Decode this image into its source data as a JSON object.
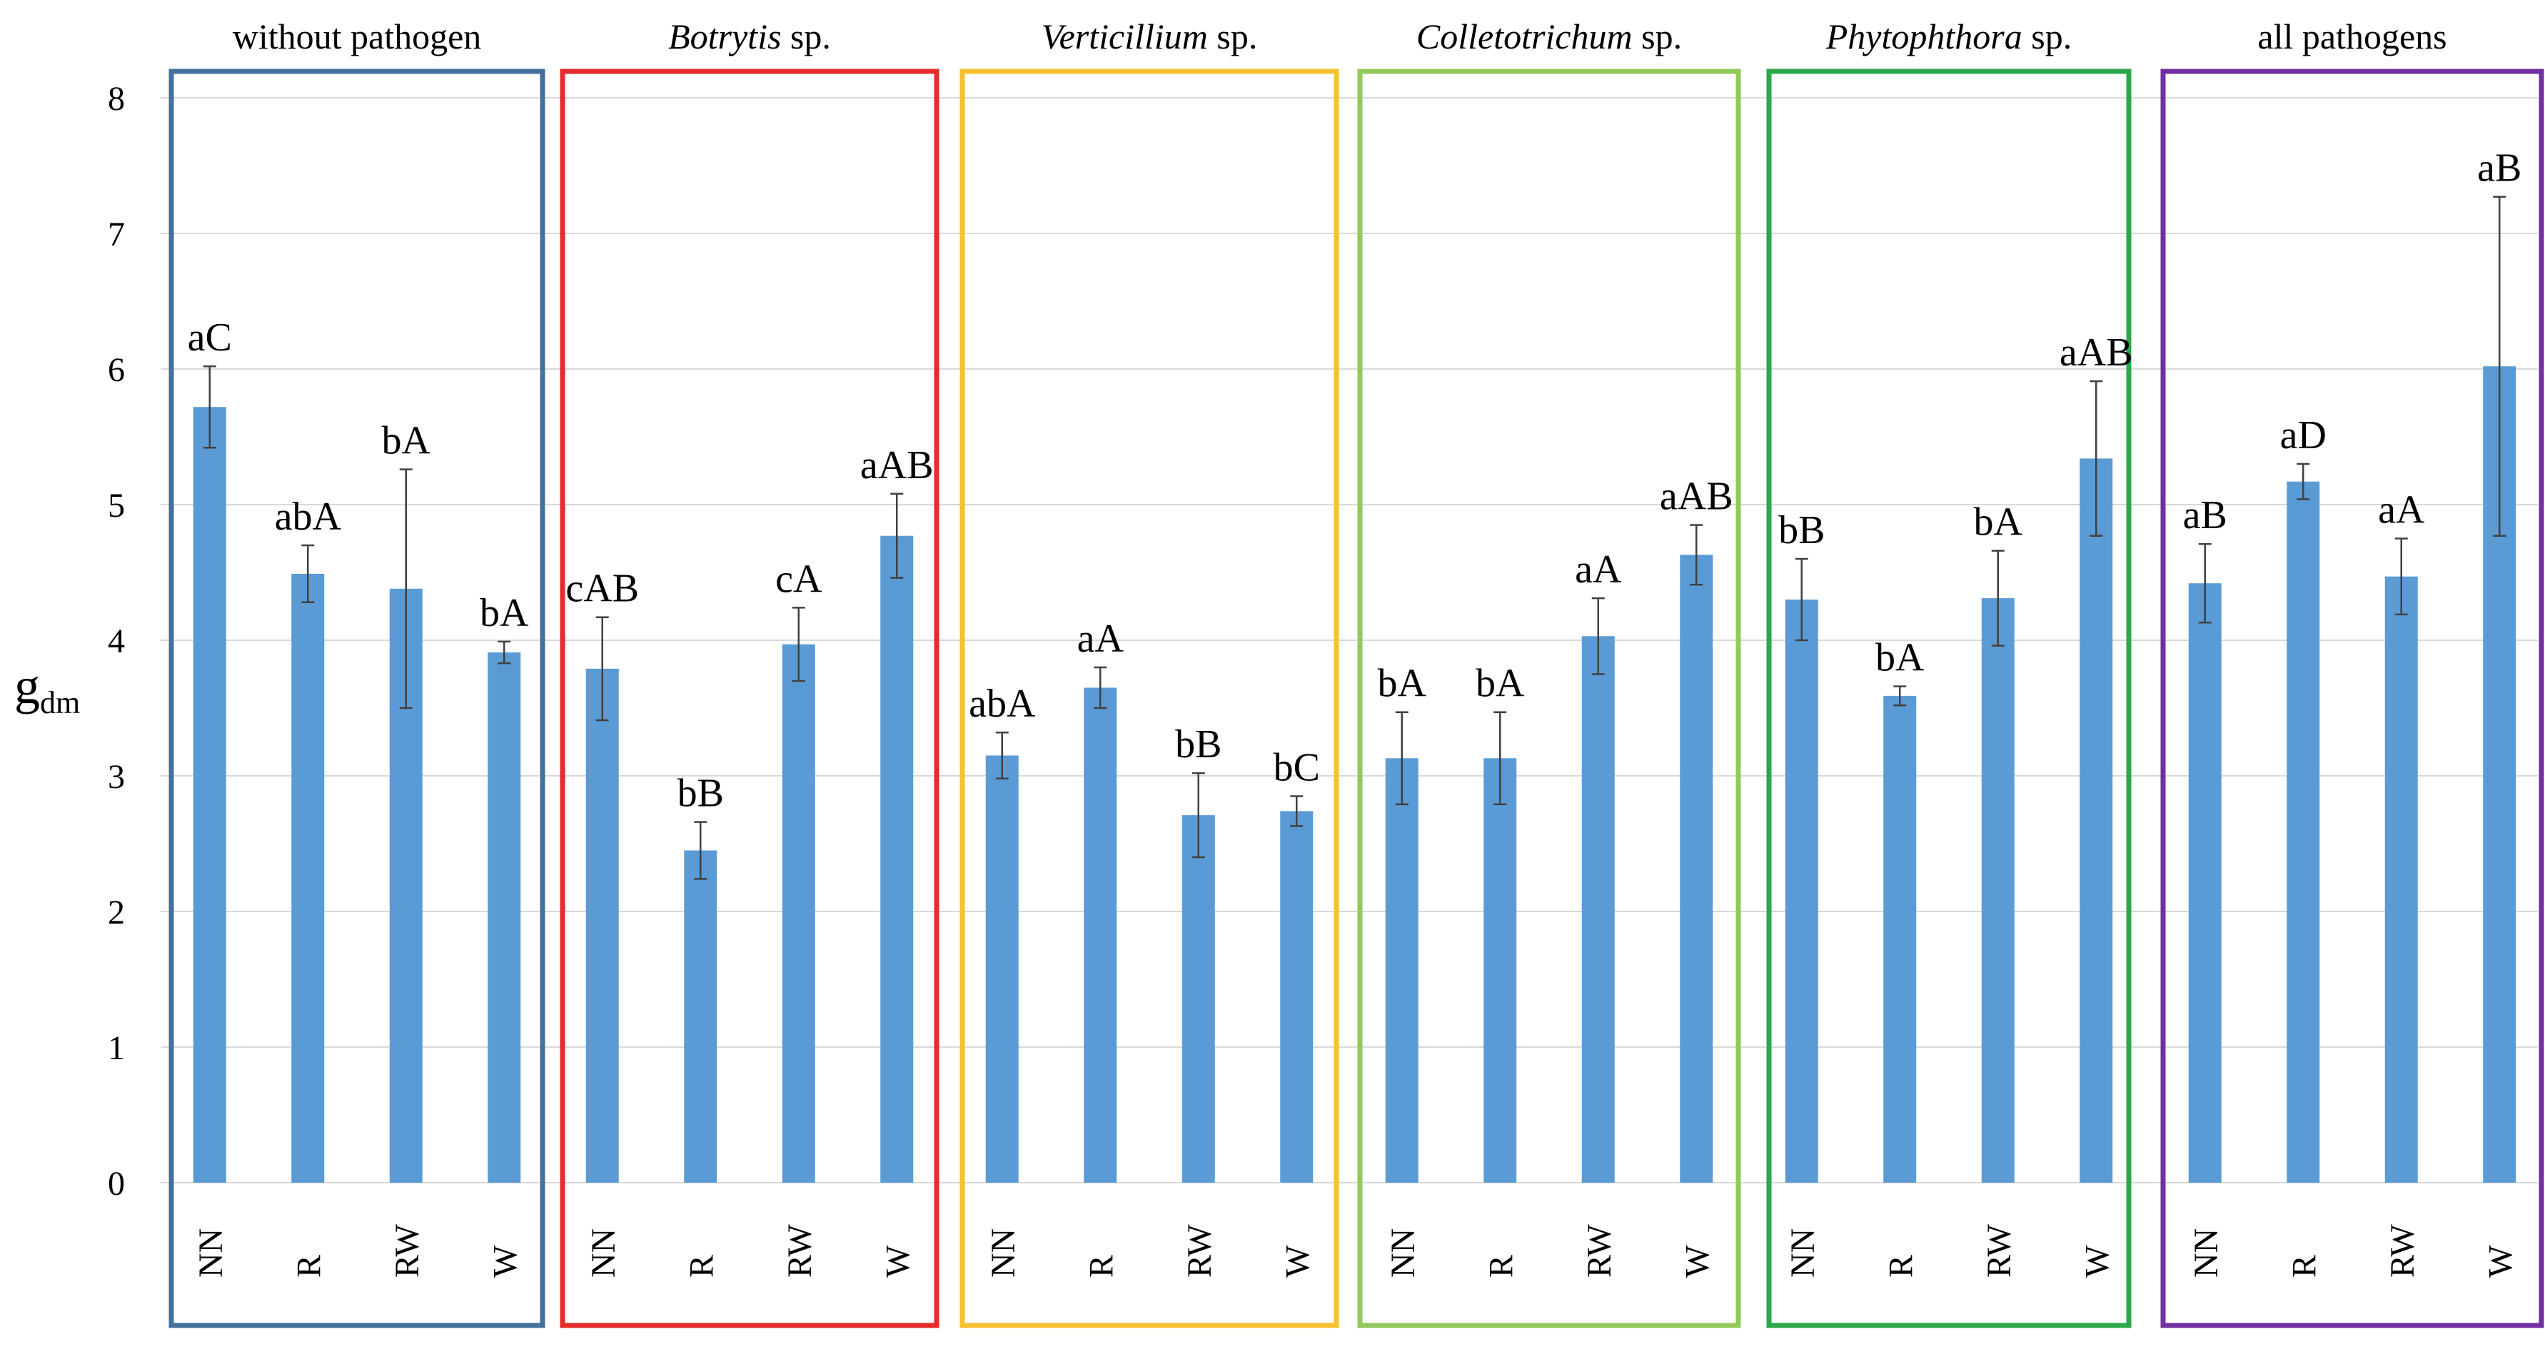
{
  "chart_data": {
    "type": "bar",
    "title": "",
    "xlabel": "",
    "ylabel": "g",
    "ylabel_subscript": "dm",
    "ylim": [
      0,
      8
    ],
    "yticks": [
      "0",
      "1",
      "2",
      "3",
      "4",
      "5",
      "6",
      "7",
      "8"
    ],
    "grid": true,
    "colors": {
      "bar": "#5b9bd5",
      "grid": "#d9d9d9",
      "error": "#404040"
    },
    "groups": [
      {
        "name": "without pathogen",
        "italic": "",
        "suffix": "",
        "color": "#41719c",
        "categories": [
          "NN",
          "R",
          "RW",
          "W"
        ],
        "values": [
          5.72,
          4.49,
          4.38,
          3.91
        ],
        "errors": [
          0.3,
          0.21,
          0.88,
          0.08
        ],
        "labels": [
          "aC",
          "abA",
          "bA",
          "bA"
        ]
      },
      {
        "name": "",
        "italic": "Botrytis",
        "suffix": " sp.",
        "color": "#e32c2c",
        "categories": [
          "NN",
          "R",
          "RW",
          "W"
        ],
        "values": [
          3.79,
          2.45,
          3.97,
          4.77
        ],
        "errors": [
          0.38,
          0.21,
          0.27,
          0.31
        ],
        "labels": [
          "cAB",
          "bB",
          "cA",
          "aAB"
        ]
      },
      {
        "name": "",
        "italic": "Verticillium",
        "suffix": " sp.",
        "color": "#f5c12f",
        "categories": [
          "NN",
          "R",
          "RW",
          "W"
        ],
        "values": [
          3.15,
          3.65,
          2.71,
          2.74
        ],
        "errors": [
          0.17,
          0.15,
          0.31,
          0.11
        ],
        "labels": [
          "abA",
          "aA",
          "bB",
          "bC"
        ]
      },
      {
        "name": "",
        "italic": "Colletotrichum",
        "suffix": " sp.",
        "color": "#92c95a",
        "categories": [
          "NN",
          "R",
          "RW",
          "W"
        ],
        "values": [
          3.13,
          3.13,
          4.03,
          4.63
        ],
        "errors": [
          0.34,
          0.34,
          0.28,
          0.22
        ],
        "labels": [
          "bA",
          "bA",
          "aA",
          "aAB"
        ]
      },
      {
        "name": "",
        "italic": "Phytophthora",
        "suffix": " sp.",
        "color": "#2aa84a",
        "categories": [
          "NN",
          "R",
          "RW",
          "W"
        ],
        "values": [
          4.3,
          3.59,
          4.31,
          5.34
        ],
        "errors": [
          0.3,
          0.07,
          0.35,
          0.57
        ],
        "labels": [
          "bB",
          "bA",
          "bA",
          "aAB"
        ]
      },
      {
        "name": "all pathogens",
        "italic": "",
        "suffix": "",
        "color": "#7030a0",
        "categories": [
          "NN",
          "R",
          "RW",
          "W"
        ],
        "values": [
          4.42,
          5.17,
          4.47,
          6.02
        ],
        "errors": [
          0.29,
          0.13,
          0.28,
          1.25
        ],
        "labels": [
          "aB",
          "aD",
          "aA",
          "aB"
        ]
      }
    ]
  }
}
